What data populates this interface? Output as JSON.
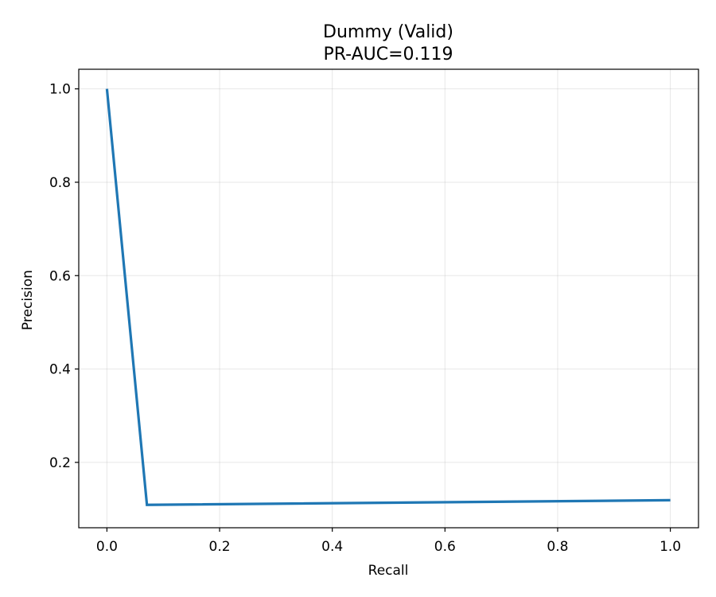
{
  "chart_data": {
    "type": "line",
    "title": "Dummy (Valid)",
    "subtitle": "PR-AUC=0.119",
    "xlabel": "Recall",
    "ylabel": "Precision",
    "xlim": [
      -0.05,
      1.05
    ],
    "ylim": [
      0.06,
      1.042
    ],
    "xticks": [
      0.0,
      0.2,
      0.4,
      0.6,
      0.8,
      1.0
    ],
    "xtick_labels": [
      "0.0",
      "0.2",
      "0.4",
      "0.6",
      "0.8",
      "1.0"
    ],
    "yticks": [
      0.2,
      0.4,
      0.6,
      0.8,
      1.0
    ],
    "ytick_labels": [
      "0.2",
      "0.4",
      "0.6",
      "0.8",
      "1.0"
    ],
    "grid": true,
    "series": [
      {
        "color": "#1f77b4",
        "x": [
          0.0,
          0.071,
          1.0
        ],
        "y": [
          1.0,
          0.109,
          0.119
        ]
      }
    ]
  }
}
